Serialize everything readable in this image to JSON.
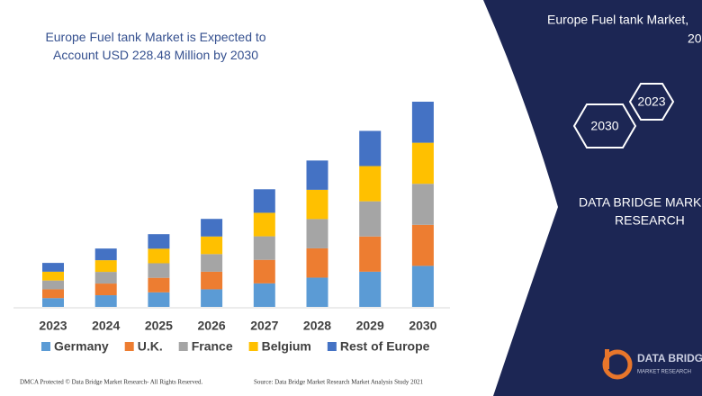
{
  "chart_data": {
    "type": "bar",
    "stacked": true,
    "title": "Europe Fuel tank Market is Expected to Account USD 228.48 Million by 2030",
    "categories": [
      "2023",
      "2024",
      "2025",
      "2026",
      "2027",
      "2028",
      "2029",
      "2030"
    ],
    "series": [
      {
        "name": "Germany",
        "color": "#5b9bd5",
        "values": [
          9.8,
          13,
          16.2,
          19.6,
          26.2,
          32.6,
          39.2,
          45.7
        ]
      },
      {
        "name": "U.K.",
        "color": "#ed7d31",
        "values": [
          9.8,
          13,
          16.2,
          19.6,
          26.2,
          32.6,
          39.2,
          45.7
        ]
      },
      {
        "name": "France",
        "color": "#a5a5a5",
        "values": [
          9.8,
          13,
          16.2,
          19.6,
          26.2,
          32.6,
          39.2,
          45.7
        ]
      },
      {
        "name": "Belgium",
        "color": "#ffc000",
        "values": [
          9.8,
          13,
          16.2,
          19.6,
          26.2,
          32.6,
          39.2,
          45.7
        ]
      },
      {
        "name": "Rest of Europe",
        "color": "#4472c4",
        "values": [
          9.8,
          13,
          16.2,
          19.6,
          26.2,
          32.6,
          39.2,
          45.7
        ]
      }
    ]
  },
  "panel": {
    "heading": "Europe Fuel tank Market,",
    "heading_2": "20",
    "hexagons": [
      "2023",
      "2030"
    ],
    "brand": [
      "DATA BRIDGE MARKET",
      "RESEARCH"
    ]
  },
  "logo": {
    "name": "DATA BRIDGE",
    "tagline": "MARKET RESEARCH"
  },
  "footer": {
    "left": "DMCA Protected © Data Bridge Market Research- All Rights Reserved.",
    "right": "Source: Data Bridge Market Research Market Analysis Study 2021"
  }
}
